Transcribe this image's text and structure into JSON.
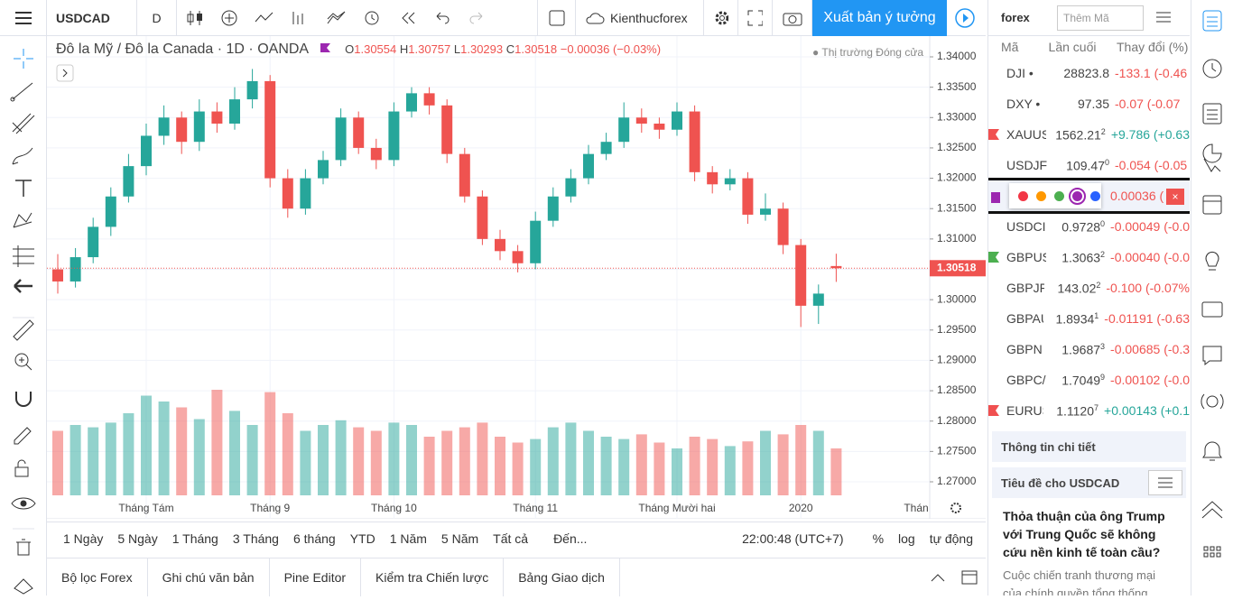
{
  "toolbar": {
    "symbol": "USDCAD",
    "interval": "D",
    "account": "Kienthucforex",
    "publish": "Xuất bản ý tưởng"
  },
  "legend": {
    "title": "Đô la Mỹ / Đô la Canada · 1D · OANDA",
    "o_label": "O",
    "o": "1.30554",
    "h_label": "H",
    "h": "1.30757",
    "l_label": "L",
    "l": "1.30293",
    "c_label": "C",
    "c": "1.30518",
    "change": "−0.00036 (−0.03%)",
    "market_status": "Thị trường Đóng cửa"
  },
  "chart_data": {
    "type": "candlestick",
    "categories": [
      null,
      null,
      null,
      null,
      null,
      "Tháng Tám",
      null,
      null,
      null,
      null,
      null,
      null,
      "Tháng 9",
      null,
      null,
      null,
      null,
      null,
      null,
      "Tháng 10",
      null,
      null,
      null,
      null,
      null,
      null,
      null,
      "Tháng 11",
      null,
      null,
      null,
      null,
      null,
      null,
      null,
      "Tháng Mười hai",
      null,
      null,
      null,
      null,
      null,
      null,
      "2020",
      null,
      null
    ],
    "candles": [
      [
        1.305,
        1.3075,
        1.301,
        1.303
      ],
      [
        1.303,
        1.3085,
        1.302,
        1.307
      ],
      [
        1.307,
        1.3135,
        1.306,
        1.312
      ],
      [
        1.312,
        1.3185,
        1.3105,
        1.317
      ],
      [
        1.317,
        1.324,
        1.316,
        1.322
      ],
      [
        1.322,
        1.329,
        1.3205,
        1.327
      ],
      [
        1.327,
        1.332,
        1.3255,
        1.33
      ],
      [
        1.33,
        1.331,
        1.324,
        1.326
      ],
      [
        1.326,
        1.333,
        1.3245,
        1.331
      ],
      [
        1.331,
        1.3325,
        1.3275,
        1.329
      ],
      [
        1.329,
        1.335,
        1.328,
        1.333
      ],
      [
        1.333,
        1.338,
        1.3315,
        1.336
      ],
      [
        1.336,
        1.337,
        1.3185,
        1.32
      ],
      [
        1.32,
        1.3215,
        1.3135,
        1.315
      ],
      [
        1.315,
        1.3215,
        1.314,
        1.32
      ],
      [
        1.32,
        1.3245,
        1.319,
        1.323
      ],
      [
        1.323,
        1.3315,
        1.322,
        1.33
      ],
      [
        1.33,
        1.331,
        1.324,
        1.325
      ],
      [
        1.325,
        1.3265,
        1.3215,
        1.323
      ],
      [
        1.323,
        1.3325,
        1.322,
        1.331
      ],
      [
        1.331,
        1.335,
        1.33,
        1.334
      ],
      [
        1.334,
        1.335,
        1.3305,
        1.332
      ],
      [
        1.332,
        1.333,
        1.3225,
        1.324
      ],
      [
        1.324,
        1.325,
        1.316,
        1.317
      ],
      [
        1.317,
        1.318,
        1.309,
        1.31
      ],
      [
        1.31,
        1.3115,
        1.3065,
        1.308
      ],
      [
        1.308,
        1.309,
        1.3045,
        1.306
      ],
      [
        1.306,
        1.3145,
        1.305,
        1.313
      ],
      [
        1.313,
        1.3185,
        1.312,
        1.317
      ],
      [
        1.317,
        1.3215,
        1.316,
        1.32
      ],
      [
        1.32,
        1.3255,
        1.319,
        1.324
      ],
      [
        1.324,
        1.3275,
        1.323,
        1.326
      ],
      [
        1.326,
        1.3325,
        1.325,
        1.33
      ],
      [
        1.33,
        1.3315,
        1.3275,
        1.329
      ],
      [
        1.329,
        1.33,
        1.3265,
        1.328
      ],
      [
        1.328,
        1.3325,
        1.327,
        1.331
      ],
      [
        1.331,
        1.332,
        1.3195,
        1.321
      ],
      [
        1.321,
        1.322,
        1.3175,
        1.319
      ],
      [
        1.319,
        1.3215,
        1.318,
        1.32
      ],
      [
        1.32,
        1.321,
        1.3125,
        1.314
      ],
      [
        1.314,
        1.3175,
        1.313,
        1.315
      ],
      [
        1.315,
        1.316,
        1.3075,
        1.309
      ],
      [
        1.309,
        1.31,
        1.2955,
        1.299
      ],
      [
        1.299,
        1.3025,
        1.296,
        1.301
      ],
      [
        1.30554,
        1.30757,
        1.30293,
        1.30518
      ]
    ],
    "volumes": [
      55,
      60,
      58,
      62,
      70,
      85,
      80,
      75,
      65,
      90,
      72,
      60,
      88,
      70,
      55,
      60,
      64,
      58,
      55,
      62,
      60,
      50,
      55,
      58,
      62,
      50,
      45,
      48,
      58,
      62,
      55,
      50,
      48,
      52,
      45,
      40,
      50,
      48,
      42,
      46,
      55,
      52,
      60,
      55,
      40
    ],
    "up_color": "#26a69a",
    "down_color": "#ef5350",
    "ylim": [
      1.27,
      1.34
    ],
    "yticks": [
      {
        "value": 1.34,
        "label": "1.34000"
      },
      {
        "value": 1.335,
        "label": "1.33500"
      },
      {
        "value": 1.33,
        "label": "1.33000"
      },
      {
        "value": 1.325,
        "label": "1.32500"
      },
      {
        "value": 1.32,
        "label": "1.32000"
      },
      {
        "value": 1.315,
        "label": "1.31500"
      },
      {
        "value": 1.31,
        "label": "1.31000"
      },
      {
        "value": 1.305,
        "label": "1.30500"
      },
      {
        "value": 1.3,
        "label": "1.30000"
      },
      {
        "value": 1.295,
        "label": "1.29500"
      },
      {
        "value": 1.29,
        "label": "1.29000"
      },
      {
        "value": 1.285,
        "label": "1.28500"
      },
      {
        "value": 1.28,
        "label": "1.28000"
      },
      {
        "value": 1.275,
        "label": "1.27500"
      },
      {
        "value": 1.27,
        "label": "1.27000"
      }
    ],
    "last_price": {
      "value": 1.30518,
      "label": "1.30518"
    },
    "grid": true
  },
  "edge_label": "Thán",
  "ranges": [
    "1 Ngày",
    "5 Ngày",
    "1 Tháng",
    "3 Tháng",
    "6 tháng",
    "YTD",
    "1 Năm",
    "5 Năm",
    "Tất cả",
    "Đến..."
  ],
  "clock": "22:00:48 (UTC+7)",
  "scale_options": [
    "%",
    "log",
    "tự động"
  ],
  "tabs": [
    "Bộ lọc Forex",
    "Ghi chú văn bản",
    "Pine Editor",
    "Kiểm tra Chiến lược",
    "Bảng Giao dịch"
  ],
  "watchlist": {
    "name": "forex",
    "search": "Thêm Mã",
    "columns": [
      "Mã",
      "Lần cuối",
      "Thay đổi (%)"
    ],
    "rows": [
      {
        "symbol": "DJI •",
        "last": "28823.8",
        "change": "-133.1 (-0.46",
        "dir": "down"
      },
      {
        "symbol": "DXY •",
        "last": "97.35",
        "change": "-0.07 (-0.07",
        "dir": "down"
      },
      {
        "symbol": "XAUUS",
        "last": "1562.21",
        "sup": "2",
        "change": "+9.786 (+0.63",
        "dir": "up",
        "flag": "#f05050"
      },
      {
        "symbol": "USDJF",
        "last": "109.47",
        "sup": "0",
        "change": "-0.054 (-0.05",
        "dir": "down"
      },
      {
        "change": "0.00036 (",
        "dir": "down",
        "selected": true
      },
      {
        "symbol": "USDCI",
        "last": "0.9728",
        "sup": "0",
        "change": "-0.00049 (-0.0",
        "dir": "down"
      },
      {
        "symbol": "GBPUS",
        "last": "1.3063",
        "sup": "2",
        "change": "-0.00040 (-0.0",
        "dir": "down",
        "flag": "#4caf50"
      },
      {
        "symbol": "GBPJF",
        "last": "143.02",
        "sup": "2",
        "change": "-0.100 (-0.07%",
        "dir": "down"
      },
      {
        "symbol": "GBPAU",
        "last": "1.8934",
        "sup": "1",
        "change": "-0.01191 (-0.63",
        "dir": "down"
      },
      {
        "symbol": "GBPN",
        "last": "1.9687",
        "sup": "3",
        "change": "-0.00685 (-0.3",
        "dir": "down"
      },
      {
        "symbol": "GBPC/",
        "last": "1.7049",
        "sup": "9",
        "change": "-0.00102 (-0.0",
        "dir": "down"
      },
      {
        "symbol": "EURUS",
        "last": "1.1120",
        "sup": "7",
        "change": "+0.00143 (+0.1",
        "dir": "up",
        "flag": "#f05050"
      }
    ]
  },
  "details": {
    "title": "Thông tin chi tiết",
    "headlines_title": "Tiêu đề cho USDCAD",
    "headline": "Thỏa thuận của ông Trump với Trung Quốc sẽ không cứu nền kinh tế toàn cầu?",
    "summary": "Cuộc chiến tranh thương mại của chính quyền tổng thống Donald Trump với Trung Quốc"
  }
}
